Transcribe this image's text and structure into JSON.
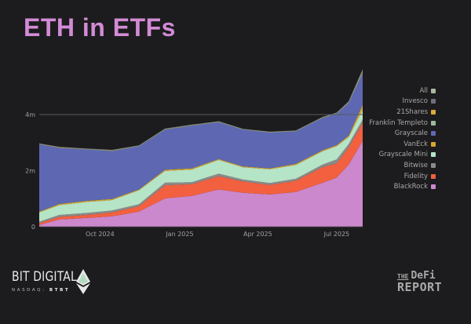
{
  "title": "ETH in ETFs",
  "chart_data": {
    "type": "area",
    "stacked": true,
    "title": "ETH in ETFs",
    "xlabel": "",
    "ylabel": "",
    "x": [
      "2024-07-23",
      "2024-08-15",
      "2024-09-15",
      "2024-10-15",
      "2024-11-15",
      "2024-12-15",
      "2025-01-15",
      "2025-02-15",
      "2025-03-15",
      "2025-04-15",
      "2025-05-15",
      "2025-06-15",
      "2025-07-01",
      "2025-07-15",
      "2025-07-31"
    ],
    "x_ticks": [
      "Oct 2024",
      "Jan 2025",
      "Apr 2025",
      "Jul 2025"
    ],
    "x_tick_dates": [
      "2024-10-01",
      "2025-01-01",
      "2025-04-01",
      "2025-07-01"
    ],
    "y_ticks": [
      "0",
      "2m",
      "4m"
    ],
    "y_tick_values": [
      0,
      2000000,
      4000000
    ],
    "ylim": [
      0,
      5700000
    ],
    "grid": "horizontal line at 4m only",
    "legend_position": "right",
    "units": "ETH (millions)",
    "series": [
      {
        "name": "BlackRock",
        "color": "#cc88cc",
        "values": [
          0.06,
          0.26,
          0.31,
          0.37,
          0.54,
          1.01,
          1.1,
          1.33,
          1.21,
          1.15,
          1.24,
          1.57,
          1.75,
          2.22,
          3.06
        ]
      },
      {
        "name": "Fidelity",
        "color": "#f2603f",
        "values": [
          0.07,
          0.09,
          0.11,
          0.14,
          0.19,
          0.47,
          0.42,
          0.47,
          0.4,
          0.34,
          0.4,
          0.56,
          0.51,
          0.61,
          0.65
        ]
      },
      {
        "name": "Bitwise",
        "color": "#8a8a8a",
        "values": [
          0.05,
          0.07,
          0.07,
          0.07,
          0.07,
          0.09,
          0.07,
          0.09,
          0.07,
          0.07,
          0.07,
          0.09,
          0.14,
          0.12,
          0.11
        ]
      },
      {
        "name": "Grayscale Mini",
        "color": "#b6e4c6",
        "values": [
          0.33,
          0.35,
          0.39,
          0.37,
          0.5,
          0.42,
          0.45,
          0.49,
          0.44,
          0.49,
          0.49,
          0.47,
          0.47,
          0.25,
          0.35
        ]
      },
      {
        "name": "VanEck",
        "color": "#d6a72b",
        "values": [
          0.03,
          0.04,
          0.04,
          0.04,
          0.03,
          0.04,
          0.04,
          0.03,
          0.03,
          0.03,
          0.04,
          0.04,
          0.04,
          0.05,
          0.17
        ]
      },
      {
        "name": "Grayscale",
        "color": "#5e68b2",
        "values": [
          2.4,
          2.0,
          1.84,
          1.71,
          1.54,
          1.43,
          1.52,
          1.32,
          1.31,
          1.28,
          1.16,
          1.15,
          1.12,
          1.17,
          1.14
        ]
      },
      {
        "name": "Franklin Templeto",
        "color": "#9cb89c",
        "values": [
          0.01,
          0.01,
          0.01,
          0.01,
          0.01,
          0.01,
          0.01,
          0.01,
          0.01,
          0.01,
          0.01,
          0.01,
          0.01,
          0.02,
          0.04
        ]
      },
      {
        "name": "21Shares",
        "color": "#d9aa3c",
        "values": [
          0.005,
          0.01,
          0.005,
          0.01,
          0.005,
          0.01,
          0.01,
          0.005,
          0.005,
          0.005,
          0.005,
          0.01,
          0.01,
          0.01,
          0.03
        ]
      },
      {
        "name": "Invesco",
        "color": "#6c6f7c",
        "values": [
          0.005,
          0.01,
          0.005,
          0.01,
          0.005,
          0.01,
          0.01,
          0.005,
          0.005,
          0.005,
          0.005,
          0.01,
          0.01,
          0.01,
          0.04
        ]
      }
    ],
    "legend": [
      {
        "name": "All",
        "color": "#a7b89f"
      },
      {
        "name": "Invesco",
        "color": "#6c6f7c"
      },
      {
        "name": "21Shares",
        "color": "#d9aa3c"
      },
      {
        "name": "Franklin Templeto",
        "color": "#9cb89c"
      },
      {
        "name": "Grayscale",
        "color": "#5e68b2"
      },
      {
        "name": "VanEck",
        "color": "#d6a72b"
      },
      {
        "name": "Grayscale Mini",
        "color": "#b6e4c6"
      },
      {
        "name": "Bitwise",
        "color": "#8a8a8a"
      },
      {
        "name": "Fidelity",
        "color": "#f2603f"
      },
      {
        "name": "BlackRock",
        "color": "#cc88cc"
      }
    ]
  },
  "logos": {
    "bit_digital": {
      "name": "BIT DIGITAL",
      "exchange": "NASDAQ:",
      "ticker": "BTBT"
    },
    "defi_report": {
      "the": "THE",
      "defi": "DeFi",
      "report": "REPORT"
    }
  }
}
